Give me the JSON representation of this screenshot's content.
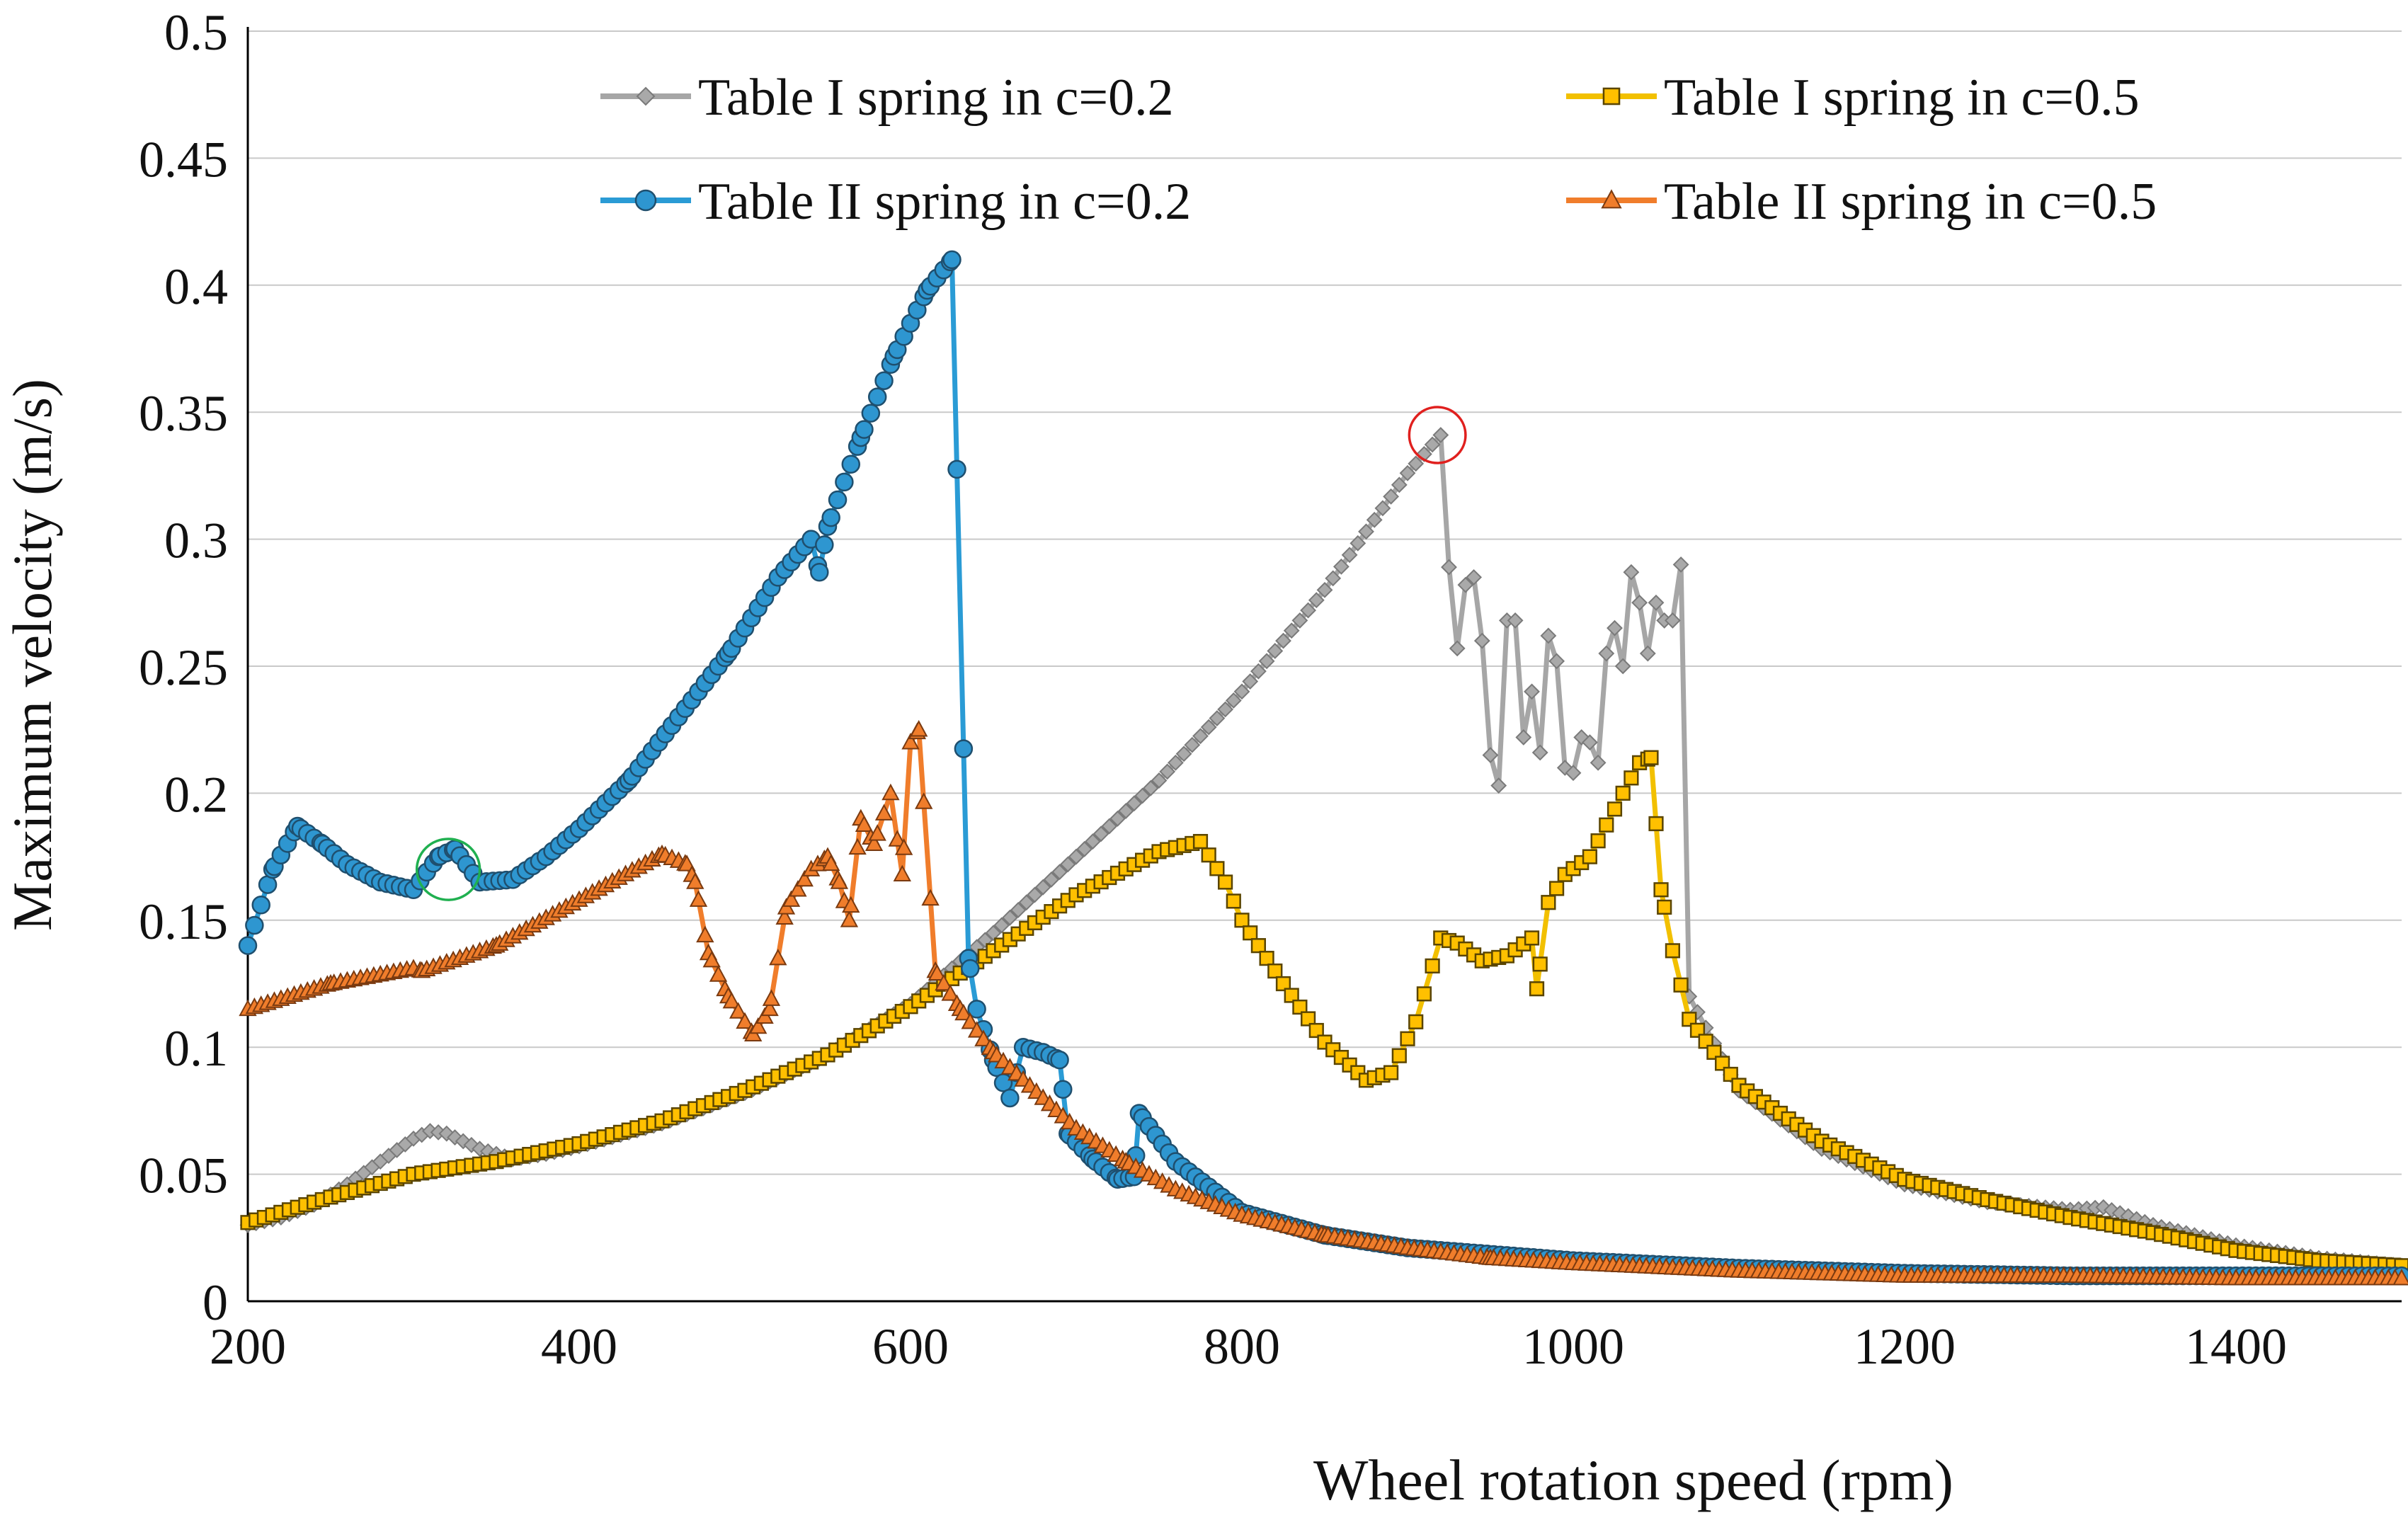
{
  "chart_data": {
    "type": "line",
    "title": "",
    "xlabel": "Wheel rotation speed (rpm)",
    "ylabel": "Maximum  velocity (m/s)",
    "xlim": [
      200,
      1500
    ],
    "ylim": [
      0,
      0.5
    ],
    "xticks": [
      200,
      400,
      600,
      800,
      1000,
      1200,
      1400
    ],
    "xtick_labels": [
      "200",
      "400",
      "600",
      "800",
      "1000",
      "1200",
      "1400"
    ],
    "yticks": [
      0,
      0.05,
      0.1,
      0.15,
      0.2,
      0.25,
      0.3,
      0.35,
      0.4,
      0.45,
      0.5
    ],
    "ytick_labels": [
      "0",
      "0.05",
      "0.1",
      "0.15",
      "0.2",
      "0.25",
      "0.3",
      "0.35",
      "0.4",
      "0.45",
      "0.5"
    ],
    "grid": true,
    "legend_position": "top",
    "series": [
      {
        "name": "Table I spring in c=0.2",
        "color": "#a6a6a6",
        "marker": "diamond",
        "step": 5,
        "points": [
          [
            200,
            0.03
          ],
          [
            220,
            0.033
          ],
          [
            240,
            0.038
          ],
          [
            260,
            0.046
          ],
          [
            280,
            0.055
          ],
          [
            300,
            0.064
          ],
          [
            310,
            0.067
          ],
          [
            320,
            0.066
          ],
          [
            340,
            0.06
          ],
          [
            360,
            0.056
          ],
          [
            380,
            0.058
          ],
          [
            400,
            0.061
          ],
          [
            450,
            0.07
          ],
          [
            500,
            0.082
          ],
          [
            550,
            0.097
          ],
          [
            600,
            0.117
          ],
          [
            650,
            0.145
          ],
          [
            700,
            0.175
          ],
          [
            750,
            0.205
          ],
          [
            800,
            0.24
          ],
          [
            850,
            0.28
          ],
          [
            900,
            0.326
          ],
          [
            920,
            0.341
          ],
          [
            925,
            0.289
          ],
          [
            930,
            0.257
          ],
          [
            935,
            0.282
          ],
          [
            940,
            0.285
          ],
          [
            945,
            0.26
          ],
          [
            950,
            0.215
          ],
          [
            955,
            0.203
          ],
          [
            960,
            0.268
          ],
          [
            965,
            0.268
          ],
          [
            970,
            0.222
          ],
          [
            975,
            0.24
          ],
          [
            980,
            0.216
          ],
          [
            985,
            0.262
          ],
          [
            990,
            0.252
          ],
          [
            995,
            0.21
          ],
          [
            1000,
            0.208
          ],
          [
            1005,
            0.222
          ],
          [
            1010,
            0.22
          ],
          [
            1015,
            0.212
          ],
          [
            1020,
            0.255
          ],
          [
            1025,
            0.265
          ],
          [
            1030,
            0.25
          ],
          [
            1035,
            0.287
          ],
          [
            1040,
            0.275
          ],
          [
            1045,
            0.255
          ],
          [
            1050,
            0.275
          ],
          [
            1055,
            0.268
          ],
          [
            1060,
            0.268
          ],
          [
            1065,
            0.29
          ],
          [
            1070,
            0.12
          ],
          [
            1100,
            0.083
          ],
          [
            1150,
            0.06
          ],
          [
            1200,
            0.046
          ],
          [
            1250,
            0.039
          ],
          [
            1300,
            0.036
          ],
          [
            1320,
            0.037
          ],
          [
            1350,
            0.03
          ],
          [
            1400,
            0.022
          ],
          [
            1450,
            0.017
          ],
          [
            1500,
            0.014
          ]
        ]
      },
      {
        "name": "Table I spring in c=0.5",
        "color": "#f2c000",
        "marker": "square",
        "step": 5,
        "points": [
          [
            200,
            0.031
          ],
          [
            250,
            0.041
          ],
          [
            300,
            0.05
          ],
          [
            350,
            0.055
          ],
          [
            400,
            0.062
          ],
          [
            450,
            0.071
          ],
          [
            500,
            0.083
          ],
          [
            550,
            0.097
          ],
          [
            600,
            0.116
          ],
          [
            650,
            0.138
          ],
          [
            700,
            0.16
          ],
          [
            750,
            0.177
          ],
          [
            775,
            0.181
          ],
          [
            790,
            0.165
          ],
          [
            800,
            0.15
          ],
          [
            825,
            0.125
          ],
          [
            850,
            0.102
          ],
          [
            875,
            0.087
          ],
          [
            890,
            0.09
          ],
          [
            905,
            0.11
          ],
          [
            920,
            0.143
          ],
          [
            930,
            0.141
          ],
          [
            945,
            0.134
          ],
          [
            960,
            0.136
          ],
          [
            975,
            0.143
          ],
          [
            978,
            0.123
          ],
          [
            985,
            0.157
          ],
          [
            995,
            0.168
          ],
          [
            1010,
            0.175
          ],
          [
            1030,
            0.2
          ],
          [
            1040,
            0.212
          ],
          [
            1047,
            0.214
          ],
          [
            1053,
            0.162
          ],
          [
            1060,
            0.138
          ],
          [
            1070,
            0.111
          ],
          [
            1100,
            0.085
          ],
          [
            1150,
            0.063
          ],
          [
            1200,
            0.048
          ],
          [
            1250,
            0.04
          ],
          [
            1300,
            0.033
          ],
          [
            1350,
            0.027
          ],
          [
            1400,
            0.02
          ],
          [
            1450,
            0.016
          ],
          [
            1500,
            0.014
          ]
        ]
      },
      {
        "name": "Table II spring in c=0.2",
        "color": "#2a9bd5",
        "marker": "circle",
        "step": 4,
        "points": [
          [
            200,
            0.14
          ],
          [
            215,
            0.17
          ],
          [
            230,
            0.187
          ],
          [
            245,
            0.18
          ],
          [
            260,
            0.172
          ],
          [
            280,
            0.165
          ],
          [
            300,
            0.162
          ],
          [
            315,
            0.175
          ],
          [
            325,
            0.178
          ],
          [
            340,
            0.165
          ],
          [
            360,
            0.166
          ],
          [
            380,
            0.175
          ],
          [
            400,
            0.186
          ],
          [
            430,
            0.205
          ],
          [
            460,
            0.23
          ],
          [
            490,
            0.255
          ],
          [
            520,
            0.285
          ],
          [
            540,
            0.3
          ],
          [
            545,
            0.287
          ],
          [
            550,
            0.305
          ],
          [
            570,
            0.34
          ],
          [
            590,
            0.372
          ],
          [
            610,
            0.398
          ],
          [
            625,
            0.41
          ],
          [
            635,
            0.135
          ],
          [
            640,
            0.115
          ],
          [
            650,
            0.095
          ],
          [
            660,
            0.08
          ],
          [
            668,
            0.1
          ],
          [
            680,
            0.098
          ],
          [
            690,
            0.095
          ],
          [
            695,
            0.066
          ],
          [
            710,
            0.056
          ],
          [
            725,
            0.048
          ],
          [
            735,
            0.049
          ],
          [
            738,
            0.074
          ],
          [
            760,
            0.055
          ],
          [
            800,
            0.035
          ],
          [
            850,
            0.026
          ],
          [
            900,
            0.021
          ],
          [
            1000,
            0.016
          ],
          [
            1100,
            0.013
          ],
          [
            1200,
            0.011
          ],
          [
            1300,
            0.01
          ],
          [
            1400,
            0.01
          ],
          [
            1500,
            0.01
          ]
        ]
      },
      {
        "name": "Table II spring in c=0.5",
        "color": "#f07d2b",
        "marker": "triangle",
        "step": 4,
        "points": [
          [
            200,
            0.115
          ],
          [
            250,
            0.125
          ],
          [
            300,
            0.131
          ],
          [
            305,
            0.13
          ],
          [
            350,
            0.14
          ],
          [
            400,
            0.158
          ],
          [
            450,
            0.176
          ],
          [
            465,
            0.172
          ],
          [
            470,
            0.165
          ],
          [
            478,
            0.137
          ],
          [
            490,
            0.12
          ],
          [
            505,
            0.105
          ],
          [
            515,
            0.115
          ],
          [
            525,
            0.155
          ],
          [
            540,
            0.17
          ],
          [
            550,
            0.175
          ],
          [
            557,
            0.165
          ],
          [
            563,
            0.15
          ],
          [
            570,
            0.19
          ],
          [
            578,
            0.18
          ],
          [
            588,
            0.2
          ],
          [
            595,
            0.168
          ],
          [
            600,
            0.22
          ],
          [
            605,
            0.225
          ],
          [
            615,
            0.13
          ],
          [
            630,
            0.115
          ],
          [
            650,
            0.098
          ],
          [
            680,
            0.08
          ],
          [
            700,
            0.068
          ],
          [
            730,
            0.055
          ],
          [
            760,
            0.044
          ],
          [
            800,
            0.034
          ],
          [
            850,
            0.026
          ],
          [
            900,
            0.021
          ],
          [
            950,
            0.017
          ],
          [
            1000,
            0.015
          ],
          [
            1100,
            0.012
          ],
          [
            1200,
            0.01
          ],
          [
            1300,
            0.01
          ],
          [
            1400,
            0.009
          ],
          [
            1500,
            0.009
          ]
        ]
      }
    ],
    "annotations": [
      {
        "type": "circle",
        "color": "#e0201e",
        "x": 918,
        "y": 0.341,
        "rx_data": 17,
        "ry_data": 0.011
      },
      {
        "type": "circle",
        "color": "#20b050",
        "x": 321,
        "y": 0.17,
        "rx_data": 19,
        "ry_data": 0.012
      }
    ]
  }
}
